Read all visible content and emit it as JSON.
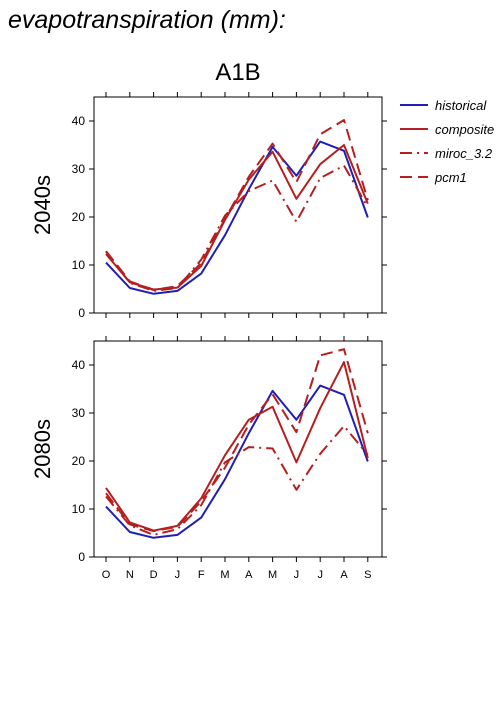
{
  "title": "evapotranspiration (mm):",
  "scenario": "A1B",
  "colors": {
    "historical": "#1f1fb4",
    "model": "#b51f1f"
  },
  "chart_data": [
    {
      "type": "line",
      "panel_label": "2040s",
      "categories": [
        "O",
        "N",
        "D",
        "J",
        "F",
        "M",
        "A",
        "M",
        "J",
        "J",
        "A",
        "S"
      ],
      "ylim": [
        0,
        45
      ],
      "yticks": [
        0,
        10,
        20,
        30,
        40
      ],
      "grid": false,
      "legend_position": "right",
      "series": [
        {
          "name": "historical",
          "style": "solid",
          "color": "#1f1fb4",
          "values": [
            10.5,
            5.2,
            4.0,
            4.6,
            8.2,
            16.2,
            25.8,
            34.6,
            28.6,
            35.7,
            33.8,
            19.9
          ]
        },
        {
          "name": "composite",
          "style": "solid",
          "color": "#b51f1f",
          "values": [
            12.3,
            6.4,
            4.9,
            5.3,
            9.8,
            19.4,
            27.8,
            33.6,
            23.8,
            31.0,
            35.0,
            22.8
          ]
        },
        {
          "name": "miroc_3.2",
          "style": "dashdot",
          "color": "#b51f1f",
          "values": [
            12.8,
            6.3,
            4.6,
            5.2,
            11.1,
            20.3,
            25.4,
            27.6,
            19.0,
            28.1,
            30.7,
            22.0
          ]
        },
        {
          "name": "pcm1",
          "style": "dash",
          "color": "#b51f1f",
          "values": [
            12.9,
            6.6,
            4.8,
            5.6,
            10.4,
            19.6,
            28.4,
            35.3,
            27.3,
            37.2,
            40.2,
            23.5
          ]
        }
      ]
    },
    {
      "type": "line",
      "panel_label": "2080s",
      "categories": [
        "O",
        "N",
        "D",
        "J",
        "F",
        "M",
        "A",
        "M",
        "J",
        "J",
        "A",
        "S"
      ],
      "ylim": [
        0,
        45
      ],
      "yticks": [
        0,
        10,
        20,
        30,
        40
      ],
      "grid": false,
      "series": [
        {
          "name": "historical",
          "style": "solid",
          "color": "#1f1fb4",
          "values": [
            10.5,
            5.2,
            4.0,
            4.6,
            8.2,
            16.2,
            25.8,
            34.6,
            28.6,
            35.7,
            33.8,
            19.9
          ]
        },
        {
          "name": "composite",
          "style": "solid",
          "color": "#b51f1f",
          "values": [
            14.4,
            7.2,
            5.5,
            6.5,
            12.2,
            21.2,
            28.6,
            31.3,
            19.7,
            31.0,
            40.6,
            20.6
          ]
        },
        {
          "name": "miroc_3.2",
          "style": "dashdot",
          "color": "#b51f1f",
          "values": [
            12.6,
            6.6,
            4.6,
            5.8,
            10.8,
            19.7,
            22.9,
            22.6,
            14.0,
            21.5,
            27.3,
            21.3
          ]
        },
        {
          "name": "pcm1",
          "style": "dash",
          "color": "#b51f1f",
          "values": [
            13.3,
            6.8,
            5.4,
            6.3,
            11.6,
            18.6,
            27.6,
            33.9,
            26.0,
            42.0,
            43.3,
            25.8
          ]
        }
      ]
    }
  ]
}
